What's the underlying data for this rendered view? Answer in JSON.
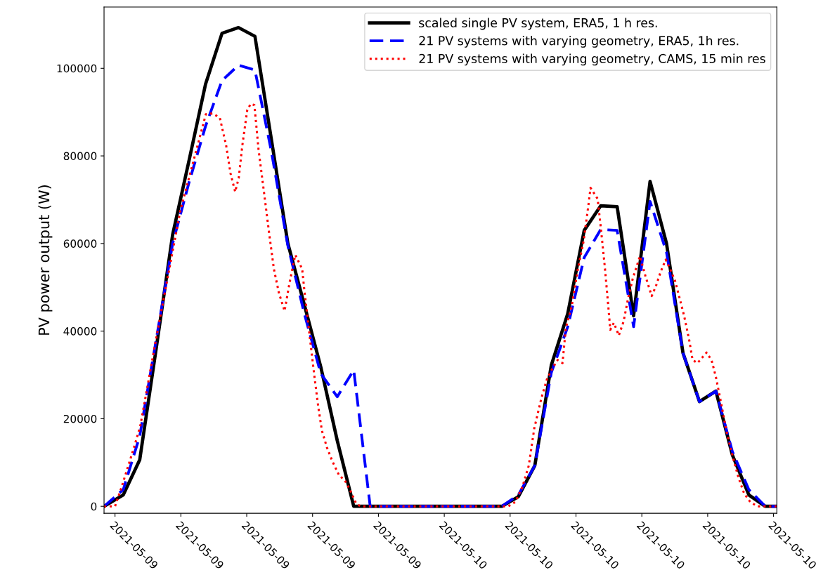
{
  "chart_data": {
    "type": "line",
    "ylabel": "PV power output (W)",
    "x": [
      "2021-05-09T03:20",
      "2021-05-09T04:30",
      "2021-05-09T05:30",
      "2021-05-09T06:30",
      "2021-05-09T07:30",
      "2021-05-09T08:30",
      "2021-05-09T09:30",
      "2021-05-09T10:30",
      "2021-05-09T11:30",
      "2021-05-09T12:30",
      "2021-05-09T13:30",
      "2021-05-09T14:30",
      "2021-05-09T15:30",
      "2021-05-09T16:30",
      "2021-05-09T17:30",
      "2021-05-09T18:30",
      "2021-05-09T19:30",
      "2021-05-09T20:30",
      "2021-05-09T21:30",
      "2021-05-09T22:30",
      "2021-05-09T23:30",
      "2021-05-10T00:30",
      "2021-05-10T01:30",
      "2021-05-10T02:30",
      "2021-05-10T03:30",
      "2021-05-10T04:30",
      "2021-05-10T05:30",
      "2021-05-10T06:30",
      "2021-05-10T07:30",
      "2021-05-10T08:30",
      "2021-05-10T09:30",
      "2021-05-10T10:30",
      "2021-05-10T11:30",
      "2021-05-10T12:30",
      "2021-05-10T13:30",
      "2021-05-10T14:30",
      "2021-05-10T15:30",
      "2021-05-10T16:30",
      "2021-05-10T17:30",
      "2021-05-10T18:30",
      "2021-05-10T19:30",
      "2021-05-10T20:12"
    ],
    "series": [
      {
        "name": "scaled single PV system, ERA5, 1 h res.",
        "color": "#000000",
        "line_style": "solid",
        "values": [
          0,
          2600,
          10600,
          36000,
          62000,
          79000,
          96400,
          108000,
          109300,
          107300,
          83700,
          60000,
          46000,
          31800,
          15000,
          0,
          0,
          0,
          0,
          0,
          0,
          0,
          0,
          0,
          0,
          2200,
          9300,
          32200,
          44000,
          63000,
          68600,
          68400,
          43500,
          74200,
          60000,
          35000,
          23900,
          26300,
          11700,
          2600,
          0,
          0
        ]
      },
      {
        "name": "21 PV systems with varying geometry, ERA5, 1h res.",
        "color": "#0000ff",
        "line_style": "dashed",
        "values": [
          0,
          3800,
          16000,
          38000,
          60000,
          74000,
          86800,
          97200,
          100700,
          99600,
          81000,
          59500,
          44000,
          30300,
          25000,
          31100,
          0,
          0,
          0,
          0,
          0,
          0,
          0,
          0,
          0,
          2600,
          9300,
          30500,
          41000,
          56800,
          63200,
          63000,
          41000,
          69600,
          58000,
          35000,
          23900,
          26300,
          12500,
          3800,
          0,
          0
        ]
      },
      {
        "name": "21 PV systems with varying geometry, CAMS, 15 min res",
        "color": "#ff0000",
        "line_style": "dotted",
        "x": [
          "2021-05-09T03:20",
          "2021-05-09T04:00",
          "2021-05-09T04:23",
          "2021-05-09T05:07",
          "2021-05-09T05:32",
          "2021-05-09T06:29",
          "2021-05-09T07:58",
          "2021-05-09T09:31",
          "2021-05-09T09:56",
          "2021-05-09T10:22",
          "2021-05-09T10:45",
          "2021-05-09T11:01",
          "2021-05-09T11:18",
          "2021-05-09T11:31",
          "2021-05-09T11:44",
          "2021-05-09T12:02",
          "2021-05-09T12:15",
          "2021-05-09T12:28",
          "2021-05-09T12:43",
          "2021-05-09T13:06",
          "2021-05-09T13:22",
          "2021-05-09T13:39",
          "2021-05-09T13:57",
          "2021-05-09T14:18",
          "2021-05-09T14:36",
          "2021-05-09T14:57",
          "2021-05-09T15:22",
          "2021-05-09T15:30",
          "2021-05-09T15:43",
          "2021-05-09T15:55",
          "2021-05-09T16:08",
          "2021-05-09T16:21",
          "2021-05-09T16:34",
          "2021-05-09T16:52",
          "2021-05-09T17:12",
          "2021-05-09T17:38",
          "2021-05-09T17:56",
          "2021-05-09T18:16",
          "2021-05-09T18:39",
          "2021-05-09T18:55",
          "2021-05-10T03:53",
          "2021-05-10T04:19",
          "2021-05-10T04:45",
          "2021-05-10T05:08",
          "2021-05-10T05:28",
          "2021-05-10T05:54",
          "2021-05-10T06:14",
          "2021-05-10T06:37",
          "2021-05-10T06:53",
          "2021-05-10T07:11",
          "2021-05-10T07:23",
          "2021-05-10T07:44",
          "2021-05-10T08:07",
          "2021-05-10T08:28",
          "2021-05-10T08:46",
          "2021-05-10T08:53",
          "2021-05-10T09:19",
          "2021-05-10T09:32",
          "2021-05-10T09:45",
          "2021-05-10T09:57",
          "2021-05-10T10:05",
          "2021-05-10T10:18",
          "2021-05-10T10:36",
          "2021-05-10T10:54",
          "2021-05-10T11:09",
          "2021-05-10T11:27",
          "2021-05-10T11:53",
          "2021-05-10T12:13",
          "2021-05-10T12:36",
          "2021-05-10T12:52",
          "2021-05-10T13:09",
          "2021-05-10T13:27",
          "2021-05-10T13:43",
          "2021-05-10T14:01",
          "2021-05-10T14:19",
          "2021-05-10T14:34",
          "2021-05-10T14:52",
          "2021-05-10T15:05",
          "2021-05-10T15:23",
          "2021-05-10T15:38",
          "2021-05-10T15:56",
          "2021-05-10T16:14",
          "2021-05-10T16:30",
          "2021-05-10T16:47",
          "2021-05-10T17:08",
          "2021-05-10T17:31",
          "2021-05-10T17:52",
          "2021-05-10T18:13",
          "2021-05-10T18:35",
          "2021-05-10T19:01",
          "2021-05-10T20:12"
        ],
        "values": [
          0,
          0,
          4200,
          13000,
          18300,
          38000,
          67500,
          89500,
          89700,
          88700,
          82400,
          76000,
          71800,
          75000,
          82400,
          90500,
          91900,
          91600,
          81500,
          70200,
          62200,
          54200,
          48800,
          44600,
          51000,
          57400,
          54200,
          49400,
          42300,
          35900,
          29000,
          22600,
          17300,
          13500,
          10300,
          6900,
          6100,
          3800,
          600,
          0,
          0,
          1000,
          4500,
          9300,
          17800,
          24700,
          29000,
          31800,
          33400,
          32700,
          40700,
          45500,
          54200,
          60600,
          69100,
          72700,
          70200,
          62700,
          54700,
          46200,
          40300,
          41900,
          39000,
          42300,
          47200,
          52000,
          57100,
          52600,
          48000,
          50400,
          53600,
          56300,
          54200,
          51500,
          47200,
          43500,
          38200,
          33400,
          32700,
          33800,
          35100,
          33400,
          29500,
          24200,
          17300,
          11400,
          6600,
          2900,
          1000,
          0,
          0
        ]
      }
    ],
    "xlim": [
      "2021-05-09T03:20",
      "2021-05-10T20:12"
    ],
    "xticks": [
      {
        "value": "2021-05-09T04:00",
        "label": "2021-05-09"
      },
      {
        "value": "2021-05-09T08:00",
        "label": "2021-05-09"
      },
      {
        "value": "2021-05-09T12:00",
        "label": "2021-05-09"
      },
      {
        "value": "2021-05-09T16:00",
        "label": "2021-05-09"
      },
      {
        "value": "2021-05-09T20:00",
        "label": "2021-05-09"
      },
      {
        "value": "2021-05-10T00:00",
        "label": "2021-05-10"
      },
      {
        "value": "2021-05-10T04:00",
        "label": "2021-05-10"
      },
      {
        "value": "2021-05-10T08:00",
        "label": "2021-05-10"
      },
      {
        "value": "2021-05-10T12:00",
        "label": "2021-05-10"
      },
      {
        "value": "2021-05-10T16:00",
        "label": "2021-05-10"
      },
      {
        "value": "2021-05-10T20:00",
        "label": "2021-05-10"
      }
    ],
    "ylim": [
      -1600,
      114000
    ],
    "yticks": [
      0,
      20000,
      40000,
      60000,
      80000,
      100000
    ],
    "grid": false,
    "legend": "top right",
    "marker": "none"
  }
}
